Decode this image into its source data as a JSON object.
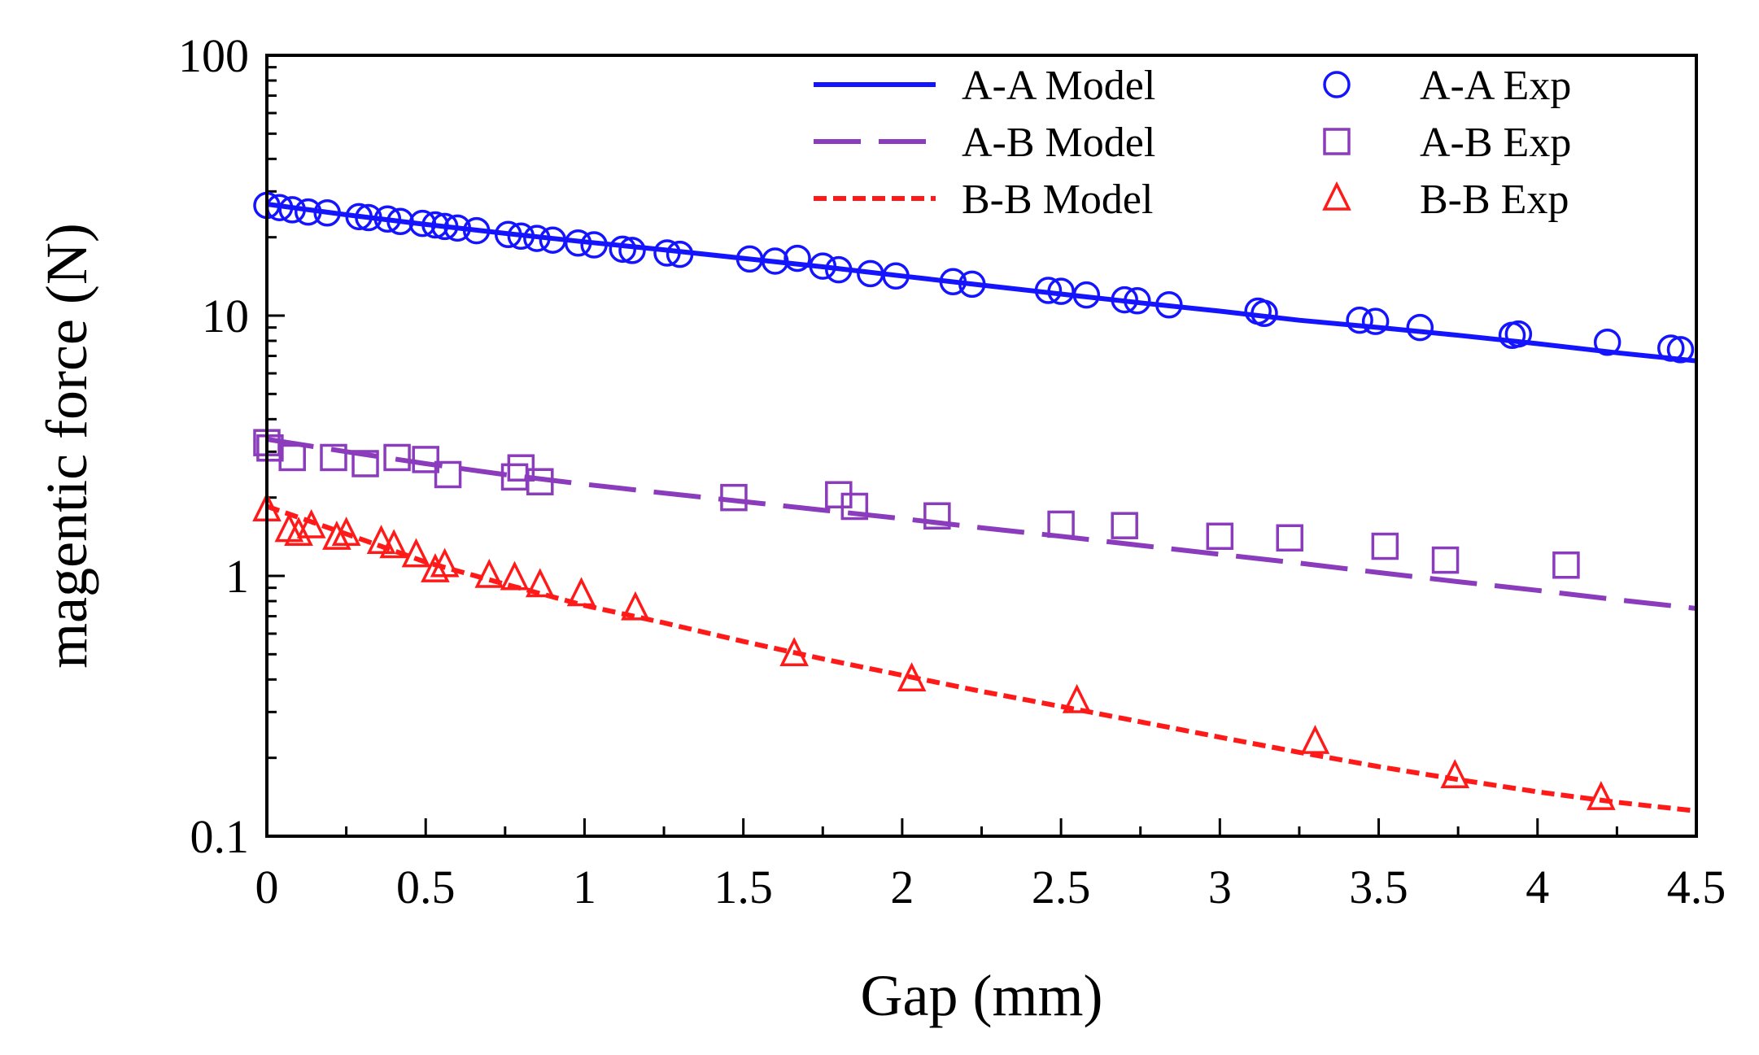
{
  "chart_data": {
    "type": "scatter",
    "title": "",
    "xlabel": "Gap (mm)",
    "ylabel": "magentic force (N)",
    "xlim": [
      0,
      4.5
    ],
    "ylim": [
      0.1,
      100
    ],
    "yscale": "log",
    "grid": false,
    "legend_position": "top-right",
    "x_ticks": [
      {
        "value": 0,
        "label": "0"
      },
      {
        "value": 0.5,
        "label": "0.5"
      },
      {
        "value": 1,
        "label": "1"
      },
      {
        "value": 1.5,
        "label": "1.5"
      },
      {
        "value": 2,
        "label": "2"
      },
      {
        "value": 2.5,
        "label": "2.5"
      },
      {
        "value": 3,
        "label": "3"
      },
      {
        "value": 3.5,
        "label": "3.5"
      },
      {
        "value": 4,
        "label": "4"
      },
      {
        "value": 4.5,
        "label": "4.5"
      }
    ],
    "y_ticks": [
      {
        "value": 0.1,
        "label": "0.1"
      },
      {
        "value": 1,
        "label": "1"
      },
      {
        "value": 10,
        "label": "10"
      },
      {
        "value": 100,
        "label": "100"
      }
    ],
    "colors": {
      "aa": "#1414ff",
      "ab": "#8a3cbc",
      "bb": "#ff1a1a"
    },
    "series": [
      {
        "name": "A-A Model",
        "kind": "line",
        "style": "solid",
        "color": "#1414ff",
        "x": [
          0,
          0.25,
          0.5,
          0.75,
          1,
          1.25,
          1.5,
          1.75,
          2,
          2.25,
          2.5,
          2.75,
          3,
          3.25,
          3.5,
          3.75,
          4,
          4.25,
          4.5
        ],
        "y": [
          26.8,
          24.4,
          22.4,
          20.7,
          19.2,
          17.9,
          16.6,
          15.4,
          14.2,
          13.1,
          12.1,
          11.2,
          10.4,
          9.6,
          9.0,
          8.4,
          7.8,
          7.2,
          6.7
        ]
      },
      {
        "name": "A-B Model",
        "kind": "line",
        "style": "dashed",
        "color": "#8a3cbc",
        "x": [
          0,
          0.25,
          0.5,
          0.75,
          1,
          1.25,
          1.5,
          1.75,
          2,
          2.25,
          2.5,
          2.75,
          3,
          3.25,
          3.5,
          3.75,
          4,
          4.25,
          4.5
        ],
        "y": [
          3.35,
          3.0,
          2.7,
          2.45,
          2.25,
          2.08,
          1.93,
          1.79,
          1.66,
          1.53,
          1.42,
          1.31,
          1.21,
          1.12,
          1.03,
          0.95,
          0.88,
          0.81,
          0.75
        ]
      },
      {
        "name": "B-B Model",
        "kind": "line",
        "style": "dotted",
        "color": "#ff1a1a",
        "x": [
          0,
          0.25,
          0.5,
          0.75,
          1,
          1.25,
          1.5,
          1.75,
          2,
          2.25,
          2.5,
          2.75,
          3,
          3.25,
          3.5,
          3.75,
          4,
          4.25,
          4.5
        ],
        "y": [
          1.85,
          1.45,
          1.13,
          0.93,
          0.77,
          0.66,
          0.56,
          0.48,
          0.415,
          0.36,
          0.315,
          0.275,
          0.24,
          0.21,
          0.185,
          0.165,
          0.148,
          0.135,
          0.125
        ]
      },
      {
        "name": "A-A Exp",
        "kind": "marker",
        "marker": "circle",
        "color": "#1414ff",
        "x": [
          0,
          0.04,
          0.08,
          0.13,
          0.19,
          0.29,
          0.32,
          0.38,
          0.42,
          0.49,
          0.53,
          0.56,
          0.6,
          0.66,
          0.76,
          0.8,
          0.85,
          0.9,
          0.98,
          1.03,
          1.12,
          1.15,
          1.26,
          1.3,
          1.52,
          1.6,
          1.67,
          1.75,
          1.8,
          1.9,
          1.98,
          2.16,
          2.22,
          2.46,
          2.5,
          2.58,
          2.7,
          2.74,
          2.84,
          3.12,
          3.14,
          3.44,
          3.49,
          3.63,
          3.92,
          3.94,
          4.22,
          4.42,
          4.45
        ],
        "y": [
          26.5,
          26.0,
          25.5,
          25.0,
          24.8,
          24.0,
          23.8,
          23.5,
          23.0,
          22.6,
          22.3,
          22.0,
          21.7,
          21.2,
          20.5,
          20.2,
          19.8,
          19.5,
          19.0,
          18.7,
          18.0,
          17.8,
          17.4,
          17.2,
          16.5,
          16.2,
          16.6,
          15.5,
          15.0,
          14.5,
          14.2,
          13.5,
          13.2,
          12.5,
          12.4,
          12.0,
          11.5,
          11.4,
          11.0,
          10.4,
          10.2,
          9.6,
          9.5,
          9.0,
          8.4,
          8.5,
          7.9,
          7.5,
          7.4
        ]
      },
      {
        "name": "A-B Exp",
        "kind": "marker",
        "marker": "square",
        "color": "#8a3cbc",
        "x": [
          0,
          0.01,
          0.08,
          0.21,
          0.31,
          0.41,
          0.5,
          0.57,
          0.78,
          0.8,
          0.86,
          1.47,
          1.8,
          1.85,
          2.11,
          2.5,
          2.7,
          3.0,
          3.22,
          3.52,
          3.71,
          4.09
        ],
        "y": [
          3.25,
          3.1,
          2.85,
          2.85,
          2.7,
          2.85,
          2.8,
          2.45,
          2.4,
          2.6,
          2.3,
          2.0,
          2.05,
          1.85,
          1.7,
          1.58,
          1.56,
          1.42,
          1.4,
          1.3,
          1.15,
          1.1
        ]
      },
      {
        "name": "B-B Exp",
        "kind": "marker",
        "marker": "triangle",
        "color": "#ff1a1a",
        "x": [
          0,
          0.07,
          0.1,
          0.14,
          0.22,
          0.25,
          0.36,
          0.4,
          0.47,
          0.53,
          0.56,
          0.7,
          0.78,
          0.86,
          0.99,
          1.16,
          1.66,
          2.03,
          2.55,
          3.3,
          3.74,
          4.2
        ],
        "y": [
          1.8,
          1.5,
          1.45,
          1.55,
          1.4,
          1.45,
          1.35,
          1.3,
          1.2,
          1.05,
          1.1,
          1.0,
          0.98,
          0.92,
          0.85,
          0.75,
          0.5,
          0.4,
          0.33,
          0.23,
          0.17,
          0.14
        ]
      }
    ]
  }
}
